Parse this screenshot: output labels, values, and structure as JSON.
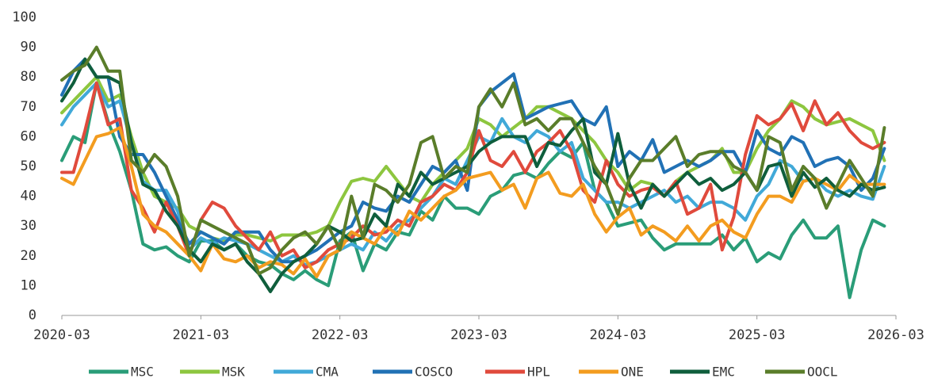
{
  "chart_data": {
    "type": "line",
    "categories": [
      "2020-03",
      null,
      null,
      null,
      null,
      null,
      null,
      null,
      null,
      null,
      null,
      null,
      "2021-03",
      null,
      null,
      null,
      null,
      null,
      null,
      null,
      null,
      null,
      null,
      null,
      "2022-03",
      null,
      null,
      null,
      null,
      null,
      null,
      null,
      null,
      null,
      null,
      null,
      "2023-03",
      null,
      null,
      null,
      null,
      null,
      null,
      null,
      null,
      null,
      null,
      null,
      "2024-03",
      null,
      null,
      null,
      null,
      null,
      null,
      null,
      null,
      null,
      null,
      null,
      "2025-03",
      null,
      null,
      null,
      null,
      null,
      null,
      null,
      null,
      null,
      null,
      null,
      "2026-03"
    ],
    "ylim": [
      0,
      100
    ],
    "yticks": [
      0,
      10,
      20,
      30,
      40,
      50,
      60,
      70,
      80,
      90,
      100
    ],
    "series": [
      {
        "name": "MSC",
        "color": "#2a9d78",
        "values": [
          52,
          60,
          58,
          78,
          65,
          55,
          42,
          24,
          22,
          23,
          20,
          18,
          25,
          25,
          22,
          24,
          20,
          18,
          17,
          14,
          12,
          15,
          12,
          10,
          25,
          28,
          15,
          24,
          22,
          28,
          27,
          35,
          32,
          40,
          36,
          36,
          34,
          40,
          42,
          47,
          48,
          46,
          51,
          55,
          53,
          58,
          42,
          38,
          30,
          31,
          32,
          26,
          22,
          24,
          24,
          24,
          24,
          27,
          22,
          26,
          18,
          21,
          19,
          27,
          32,
          26,
          26,
          30,
          6,
          22,
          32,
          30,
          null
        ]
      },
      {
        "name": "MSK",
        "color": "#8dc63f",
        "values": [
          68,
          72,
          76,
          80,
          72,
          74,
          60,
          48,
          40,
          38,
          36,
          30,
          28,
          26,
          25,
          27,
          27,
          26,
          25,
          27,
          27,
          27,
          28,
          30,
          38,
          45,
          46,
          45,
          50,
          45,
          40,
          38,
          44,
          48,
          52,
          56,
          66,
          64,
          60,
          63,
          66,
          70,
          70,
          68,
          66,
          62,
          58,
          52,
          48,
          42,
          45,
          44,
          40,
          45,
          48,
          50,
          52,
          56,
          48,
          48,
          56,
          62,
          66,
          72,
          70,
          66,
          64,
          65,
          66,
          64,
          62,
          52,
          null
        ]
      },
      {
        "name": "CMA",
        "color": "#41a9d8",
        "values": [
          64,
          70,
          74,
          78,
          70,
          72,
          58,
          45,
          42,
          42,
          35,
          22,
          26,
          24,
          26,
          25,
          24,
          22,
          20,
          18,
          20,
          17,
          18,
          20,
          22,
          24,
          22,
          28,
          25,
          30,
          32,
          36,
          40,
          46,
          44,
          52,
          60,
          58,
          66,
          60,
          58,
          62,
          60,
          55,
          58,
          46,
          42,
          38,
          38,
          36,
          38,
          40,
          42,
          38,
          40,
          36,
          38,
          38,
          36,
          32,
          40,
          44,
          52,
          50,
          45,
          46,
          42,
          40,
          42,
          40,
          39,
          50,
          null
        ]
      },
      {
        "name": "COSCO",
        "color": "#2171b5",
        "values": [
          74,
          82,
          86,
          80,
          80,
          60,
          54,
          54,
          48,
          40,
          32,
          24,
          28,
          26,
          24,
          28,
          28,
          28,
          22,
          18,
          18,
          20,
          22,
          25,
          28,
          30,
          38,
          36,
          35,
          40,
          38,
          44,
          50,
          48,
          52,
          42,
          70,
          75,
          78,
          81,
          66,
          68,
          70,
          71,
          72,
          66,
          64,
          70,
          50,
          55,
          52,
          59,
          48,
          50,
          52,
          50,
          52,
          55,
          55,
          48,
          62,
          56,
          54,
          60,
          58,
          50,
          52,
          53,
          50,
          42,
          46,
          56,
          null
        ]
      },
      {
        "name": "HPL",
        "color": "#e04a3c",
        "values": [
          48,
          48,
          62,
          78,
          64,
          66,
          42,
          36,
          28,
          38,
          30,
          20,
          32,
          38,
          36,
          30,
          26,
          22,
          28,
          20,
          22,
          16,
          18,
          22,
          24,
          26,
          30,
          27,
          28,
          32,
          30,
          38,
          40,
          44,
          42,
          48,
          62,
          52,
          50,
          55,
          48,
          55,
          58,
          62,
          55,
          42,
          38,
          52,
          44,
          40,
          42,
          43,
          40,
          45,
          34,
          36,
          44,
          22,
          33,
          54,
          67,
          64,
          66,
          71,
          62,
          72,
          64,
          68,
          62,
          58,
          56,
          58,
          null
        ]
      },
      {
        "name": "ONE",
        "color": "#f39c1f",
        "values": [
          46,
          44,
          52,
          60,
          61,
          63,
          50,
          34,
          30,
          28,
          24,
          20,
          15,
          24,
          19,
          18,
          20,
          16,
          18,
          17,
          14,
          19,
          13,
          20,
          22,
          28,
          26,
          24,
          30,
          27,
          35,
          32,
          36,
          40,
          42,
          46,
          47,
          48,
          42,
          44,
          36,
          46,
          48,
          41,
          40,
          44,
          34,
          28,
          33,
          36,
          27,
          30,
          28,
          25,
          30,
          25,
          30,
          32,
          28,
          26,
          34,
          40,
          40,
          38,
          45,
          46,
          44,
          42,
          47,
          44,
          44,
          44,
          null
        ]
      },
      {
        "name": "EMC",
        "color": "#0f5e3c",
        "values": [
          72,
          78,
          86,
          80,
          80,
          78,
          58,
          44,
          42,
          35,
          30,
          22,
          18,
          24,
          22,
          24,
          18,
          14,
          8,
          14,
          18,
          20,
          24,
          30,
          28,
          25,
          26,
          34,
          30,
          44,
          40,
          48,
          44,
          46,
          48,
          50,
          55,
          58,
          60,
          60,
          60,
          50,
          58,
          57,
          62,
          66,
          48,
          44,
          61,
          44,
          36,
          44,
          40,
          44,
          48,
          44,
          46,
          42,
          44,
          48,
          42,
          50,
          51,
          40,
          48,
          43,
          46,
          42,
          40,
          44,
          42,
          43,
          null
        ]
      },
      {
        "name": "OOCL",
        "color": "#5a7d2a",
        "values": [
          79,
          82,
          84,
          90,
          82,
          82,
          52,
          48,
          54,
          50,
          40,
          20,
          32,
          30,
          28,
          26,
          24,
          14,
          16,
          22,
          26,
          28,
          24,
          30,
          22,
          40,
          26,
          44,
          42,
          38,
          44,
          58,
          60,
          46,
          50,
          48,
          70,
          76,
          70,
          78,
          64,
          66,
          62,
          66,
          66,
          58,
          50,
          44,
          34,
          46,
          52,
          52,
          56,
          60,
          50,
          54,
          55,
          55,
          50,
          48,
          42,
          60,
          58,
          42,
          50,
          46,
          36,
          44,
          52,
          46,
          40,
          63,
          null
        ]
      }
    ]
  }
}
